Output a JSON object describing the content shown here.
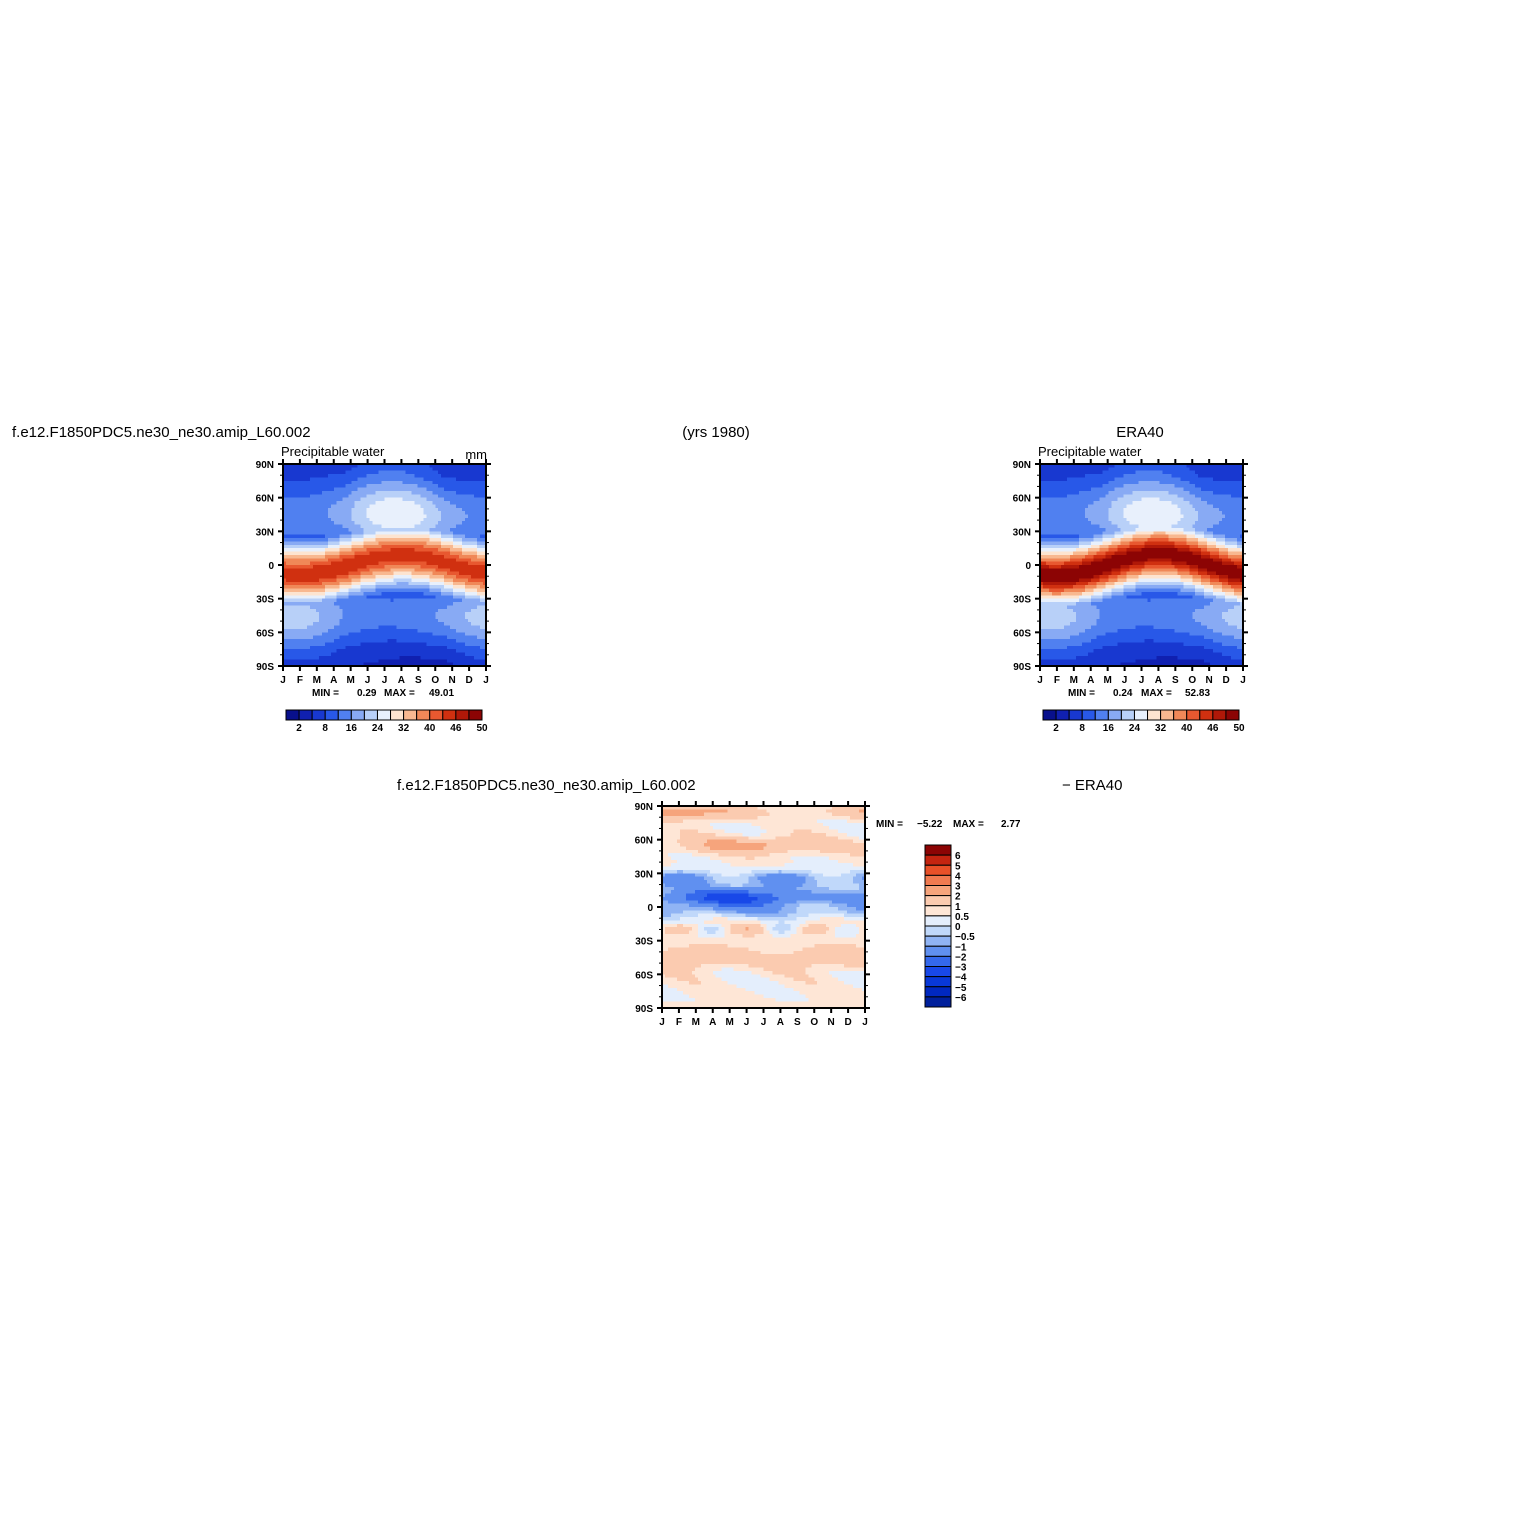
{
  "figure": {
    "left_title": "f.e12.F1850PDC5.ne30_ne30.amip_L60.002",
    "center_title": "(yrs  1980)",
    "right_title": "ERA40",
    "diff_title_left": "f.e12.F1850PDC5.ne30_ne30.amip_L60.002",
    "diff_title_right": "−  ERA40"
  },
  "colors": {
    "full_palette": [
      "#08108c",
      "#1020b0",
      "#1838d0",
      "#2858e8",
      "#5080f0",
      "#88aaf4",
      "#b8d0f8",
      "#e8f0fc",
      "#fde4d0",
      "#f8b890",
      "#f08858",
      "#e85830",
      "#d03010",
      "#b01808",
      "#8c0404"
    ],
    "diff_palette": [
      "#00209c",
      "#0028c0",
      "#0838d8",
      "#1848e8",
      "#3468ec",
      "#6090f0",
      "#90b4f4",
      "#c0d8fa",
      "#e4eefc",
      "#fee6d6",
      "#fbcbb0",
      "#f6a47c",
      "#f07a50",
      "#e85028",
      "#c42410",
      "#8c0404"
    ]
  },
  "chart_data": [
    {
      "type": "heatmap",
      "panel": "model",
      "title": "Precipitable  water",
      "units": "mm",
      "x": [
        "J",
        "F",
        "M",
        "A",
        "M",
        "J",
        "J",
        "A",
        "S",
        "O",
        "N",
        "D",
        "J"
      ],
      "y_ticks": [
        "90N",
        "60N",
        "30N",
        "0",
        "30S",
        "60S",
        "90S"
      ],
      "ylim": [
        -90,
        90
      ],
      "min_label": "MIN =",
      "min_value": "0.29",
      "max_label": "MAX =",
      "max_value": "49.01",
      "colorbar_ticks": [
        "2",
        "8",
        "16",
        "24",
        "32",
        "40",
        "46",
        "50"
      ],
      "levels": [
        2,
        4,
        8,
        12,
        16,
        20,
        24,
        28,
        32,
        36,
        40,
        43,
        46,
        48,
        50
      ],
      "model_params": {
        "itcz_amp": 9,
        "tropical_peak": 45
      }
    },
    {
      "type": "heatmap",
      "panel": "obs",
      "title": "Precipitable  water",
      "x": [
        "J",
        "F",
        "M",
        "A",
        "M",
        "J",
        "J",
        "A",
        "S",
        "O",
        "N",
        "D",
        "J"
      ],
      "y_ticks": [
        "90N",
        "60N",
        "30N",
        "0",
        "30S",
        "60S",
        "90S"
      ],
      "ylim": [
        -90,
        90
      ],
      "min_label": "MIN =",
      "min_value": "0.24",
      "max_label": "MAX =",
      "max_value": "52.83",
      "colorbar_ticks": [
        "2",
        "8",
        "16",
        "24",
        "32",
        "40",
        "46",
        "50"
      ],
      "levels": [
        2,
        4,
        8,
        12,
        16,
        20,
        24,
        28,
        32,
        36,
        40,
        43,
        46,
        48,
        50
      ],
      "model_params": {
        "itcz_amp": 10,
        "tropical_peak": 50
      }
    },
    {
      "type": "heatmap",
      "panel": "difference",
      "x": [
        "J",
        "F",
        "M",
        "A",
        "M",
        "J",
        "J",
        "A",
        "S",
        "O",
        "N",
        "D",
        "J"
      ],
      "y_ticks": [
        "90N",
        "60N",
        "30N",
        "0",
        "30S",
        "60S",
        "90S"
      ],
      "ylim": [
        -90,
        90
      ],
      "min_label": "MIN =",
      "min_value": "−5.22",
      "max_label": "MAX =",
      "max_value": "2.77",
      "colorbar_labels": [
        "6",
        "5",
        "4",
        "3",
        "2",
        "1",
        "0.5",
        "0",
        "−0.5",
        "−1",
        "−2",
        "−3",
        "−4",
        "−5",
        "−6"
      ],
      "levels": [
        -6,
        -5,
        -4,
        -3,
        -2,
        -1,
        -0.5,
        0,
        0.5,
        1,
        2,
        3,
        4,
        5,
        6
      ]
    }
  ]
}
